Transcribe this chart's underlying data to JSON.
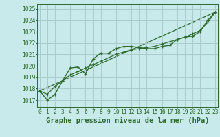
{
  "background_color": "#c8eaea",
  "grid_color": "#aacccc",
  "line_color": "#2d6a2d",
  "title": "Graphe pression niveau de la mer (hPa)",
  "xlim": [
    -0.3,
    23.3
  ],
  "ylim": [
    1016.4,
    1025.4
  ],
  "yticks": [
    1017,
    1018,
    1019,
    1020,
    1021,
    1022,
    1023,
    1024,
    1025
  ],
  "xticks": [
    0,
    1,
    2,
    3,
    4,
    5,
    6,
    7,
    8,
    9,
    10,
    11,
    12,
    13,
    14,
    15,
    16,
    17,
    18,
    19,
    20,
    21,
    22,
    23
  ],
  "series1_x": [
    0,
    1,
    2,
    3,
    4,
    5,
    6,
    7,
    8,
    9,
    10,
    11,
    12,
    13,
    14,
    15,
    16,
    17,
    18,
    19,
    20,
    21,
    22,
    23
  ],
  "series1_y": [
    1017.8,
    1017.0,
    1017.5,
    1018.7,
    1019.8,
    1019.9,
    1019.3,
    1020.6,
    1021.1,
    1021.1,
    1021.5,
    1021.7,
    1021.7,
    1021.6,
    1021.5,
    1021.5,
    1021.7,
    1021.8,
    1022.3,
    1022.5,
    1022.6,
    1023.0,
    1024.0,
    1024.7
  ],
  "series2_x": [
    0,
    1,
    2,
    3,
    4,
    5,
    6,
    7,
    8,
    9,
    10,
    11,
    12,
    13,
    14,
    15,
    16,
    17,
    18,
    19,
    20,
    21,
    22,
    23
  ],
  "series2_y": [
    1017.8,
    1017.5,
    1018.2,
    1018.7,
    1019.2,
    1019.5,
    1019.8,
    1020.1,
    1020.4,
    1020.7,
    1021.0,
    1021.2,
    1021.4,
    1021.5,
    1021.6,
    1021.7,
    1021.9,
    1022.1,
    1022.3,
    1022.5,
    1022.8,
    1023.1,
    1023.8,
    1024.7
  ],
  "trend_x": [
    0,
    23
  ],
  "trend_y": [
    1017.8,
    1024.7
  ],
  "title_fontsize": 7.5,
  "tick_fontsize": 5.8
}
